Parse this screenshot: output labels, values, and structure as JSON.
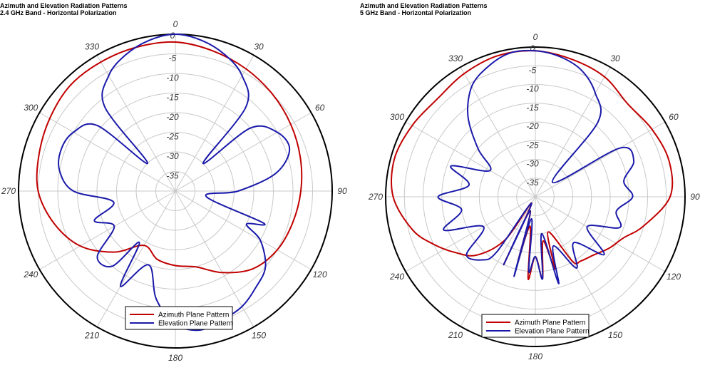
{
  "chart_data": [
    {
      "type": "polar",
      "title": "Azimuth and Elevation Radiation Patterns",
      "subtitle": "2.4 GHz Band - Horizontal Polarization",
      "angle_labels": [
        "0",
        "30",
        "60",
        "90",
        "120",
        "150",
        "180",
        "210",
        "240",
        "270",
        "300",
        "330"
      ],
      "radial_labels": [
        "0",
        "-5",
        "-10",
        "-15",
        "-20",
        "-25",
        "-30",
        "-35"
      ],
      "rlim": [
        -40,
        0
      ],
      "grid": true,
      "legend_position": "bottom",
      "series": [
        {
          "name": "Azimuth Plane Pattern",
          "color": "#c00000",
          "angles": [
            0,
            15,
            30,
            45,
            60,
            75,
            90,
            105,
            120,
            135,
            150,
            165,
            180,
            195,
            210,
            225,
            240,
            255,
            270,
            285,
            300,
            315,
            330,
            345
          ],
          "values": [
            -2,
            -3,
            -4,
            -5,
            -6,
            -7,
            -8,
            -9,
            -10,
            -12,
            -16,
            -20,
            -21,
            -22,
            -24,
            -18,
            -12,
            -8,
            -5,
            -4,
            -3,
            -2,
            -2,
            -2
          ]
        },
        {
          "name": "Elevation Plane Pattern",
          "color": "#1a1aaa",
          "angles": [
            0,
            10,
            20,
            30,
            40,
            45,
            50,
            60,
            70,
            80,
            90,
            100,
            110,
            115,
            120,
            130,
            140,
            150,
            160,
            170,
            180,
            190,
            200,
            210,
            215,
            220,
            230,
            240,
            250,
            260,
            270,
            280,
            290,
            300,
            310,
            315,
            320,
            330,
            340,
            350
          ],
          "values": [
            0,
            -1,
            -3,
            -6,
            -12,
            -30,
            -15,
            -10,
            -9,
            -14,
            -24,
            -32,
            -16,
            -20,
            -15,
            -10,
            -8,
            -6,
            -5,
            -4,
            -6,
            -12,
            -20,
            -12,
            -24,
            -15,
            -14,
            -22,
            -18,
            -24,
            -14,
            -10,
            -9,
            -10,
            -14,
            -30,
            -12,
            -6,
            -3,
            -1
          ]
        }
      ],
      "legend": [
        "Azimuth Plane Pattern",
        "Elevation Plane Pattern"
      ]
    },
    {
      "type": "polar",
      "title": "Azimuth and Elevation Radiation Patterns",
      "subtitle": "5 GHz Band - Horizontal Polarization",
      "angle_labels": [
        "0",
        "30",
        "60",
        "90",
        "120",
        "150",
        "180",
        "210",
        "240",
        "270",
        "300",
        "330"
      ],
      "radial_labels": [
        "0",
        "-5",
        "-10",
        "-15",
        "-20",
        "-25",
        "-30",
        "-35"
      ],
      "rlim": [
        -40,
        0
      ],
      "grid": true,
      "legend_position": "bottom",
      "series": [
        {
          "name": "Azimuth Plane Pattern",
          "color": "#c00000",
          "angles": [
            0,
            15,
            30,
            45,
            60,
            75,
            90,
            105,
            115,
            125,
            135,
            145,
            150,
            160,
            165,
            170,
            175,
            180,
            185,
            190,
            195,
            200,
            205,
            210,
            215,
            225,
            235,
            245,
            255,
            270,
            285,
            300,
            315,
            330,
            345
          ],
          "values": [
            -1,
            -2,
            -3,
            -5,
            -4,
            -3,
            -4,
            -10,
            -14,
            -16,
            -18,
            -19,
            -20,
            -30,
            -20,
            -28,
            -18,
            -24,
            -18,
            -32,
            -22,
            -36,
            -20,
            -38,
            -26,
            -18,
            -14,
            -10,
            -6,
            -2,
            -1,
            -2,
            -3,
            -2,
            -1
          ]
        },
        {
          "name": "Elevation Plane Pattern",
          "color": "#1a1aaa",
          "angles": [
            0,
            10,
            20,
            30,
            40,
            50,
            60,
            70,
            80,
            90,
            100,
            110,
            120,
            130,
            140,
            150,
            160,
            165,
            170,
            175,
            180,
            185,
            190,
            195,
            200,
            205,
            210,
            215,
            220,
            230,
            240,
            250,
            260,
            270,
            280,
            290,
            300,
            310,
            320,
            330,
            340,
            350
          ],
          "values": [
            -1,
            -2,
            -4,
            -8,
            -14,
            -34,
            -14,
            -12,
            -16,
            -14,
            -18,
            -16,
            -24,
            -16,
            -24,
            -18,
            -26,
            -16,
            -30,
            -18,
            -24,
            -20,
            -34,
            -18,
            -36,
            -20,
            -38,
            -22,
            -18,
            -16,
            -24,
            -14,
            -20,
            -14,
            -22,
            -16,
            -26,
            -20,
            -12,
            -6,
            -3,
            -1
          ]
        }
      ],
      "legend": [
        "Azimuth Plane Pattern",
        "Elevation Plane Pattern"
      ]
    }
  ]
}
